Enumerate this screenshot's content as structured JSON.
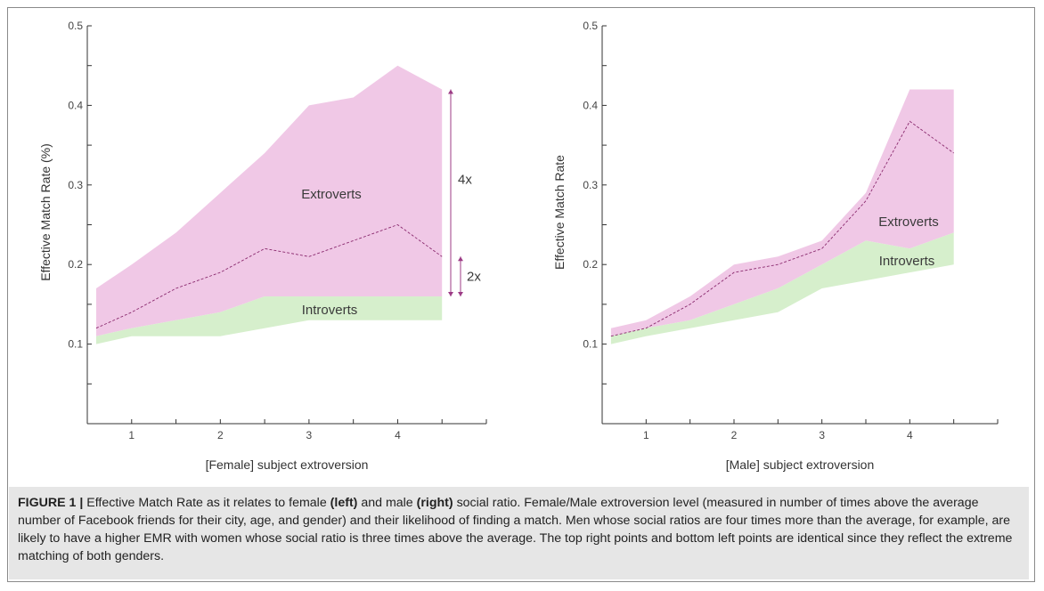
{
  "colors": {
    "extroverts_fill": "#f0c8e6",
    "introverts_fill": "#d6efcc",
    "median_line": "#8a2a6e",
    "arrow": "#9c3b85",
    "axis": "#333333"
  },
  "chart_data": [
    {
      "type": "area",
      "xlabel": "[Female] subject extroversion",
      "ylabel": "Effective Match Rate (%)",
      "xlim": [
        0.5,
        5.0
      ],
      "ylim": [
        0.0,
        0.5
      ],
      "xticks": [
        1,
        2,
        3,
        4
      ],
      "yticks": [
        0.1,
        0.2,
        0.3,
        0.4,
        0.5
      ],
      "ytick_labels": [
        "0.1",
        "0.2",
        "0.3",
        "0.4",
        "0.5"
      ],
      "x": [
        0.6,
        1.0,
        1.5,
        2.0,
        2.5,
        3.0,
        3.5,
        4.0,
        4.5
      ],
      "series": [
        {
          "name": "Extroverts",
          "upper": [
            0.17,
            0.2,
            0.24,
            0.29,
            0.34,
            0.4,
            0.41,
            0.45,
            0.42
          ]
        },
        {
          "name": "Introverts",
          "upper": [
            0.11,
            0.12,
            0.13,
            0.14,
            0.16,
            0.16,
            0.16,
            0.16,
            0.16
          ],
          "lower": [
            0.1,
            0.11,
            0.11,
            0.11,
            0.12,
            0.13,
            0.13,
            0.13,
            0.13
          ]
        }
      ],
      "median": [
        0.12,
        0.14,
        0.17,
        0.19,
        0.22,
        0.21,
        0.23,
        0.25,
        0.21
      ],
      "annotations": {
        "big_ratio": "4x",
        "small_ratio": "2x"
      }
    },
    {
      "type": "area",
      "xlabel": "[Male] subject extroversion",
      "ylabel": "Effective Match Rate",
      "xlim": [
        0.5,
        5.0
      ],
      "ylim": [
        0.0,
        0.5
      ],
      "xticks": [
        1,
        2,
        3,
        4
      ],
      "yticks": [
        0.1,
        0.2,
        0.3,
        0.4,
        0.5
      ],
      "ytick_labels": [
        "0.1",
        "0.2",
        "0.3",
        "0.4",
        "0.5"
      ],
      "x": [
        0.6,
        1.0,
        1.5,
        2.0,
        2.5,
        3.0,
        3.5,
        4.0,
        4.5
      ],
      "series": [
        {
          "name": "Extroverts",
          "upper": [
            0.12,
            0.13,
            0.16,
            0.2,
            0.21,
            0.23,
            0.29,
            0.42,
            0.42
          ]
        },
        {
          "name": "Introverts",
          "upper": [
            0.11,
            0.12,
            0.13,
            0.15,
            0.17,
            0.2,
            0.23,
            0.22,
            0.24
          ],
          "lower": [
            0.1,
            0.11,
            0.12,
            0.13,
            0.14,
            0.17,
            0.18,
            0.19,
            0.2
          ]
        }
      ],
      "median": [
        0.11,
        0.12,
        0.15,
        0.19,
        0.2,
        0.22,
        0.28,
        0.38,
        0.34
      ]
    }
  ],
  "caption": {
    "prefix": "FIGURE 1 |",
    "t1": " Effective Match Rate as it relates to female ",
    "b1": "(left)",
    "t2": " and male ",
    "b2": "(right)",
    "t3": " social ratio. Female/Male extroversion level (measured in number of times above the average number of Facebook friends for their city, age, and gender) and their likelihood of finding a match. Men whose social ratios are four times more than the average, for example, are likely to have a higher EMR with women whose social ratio is three times above the average. The top right points and bottom left points are identical since they reflect the extreme matching of both genders."
  }
}
